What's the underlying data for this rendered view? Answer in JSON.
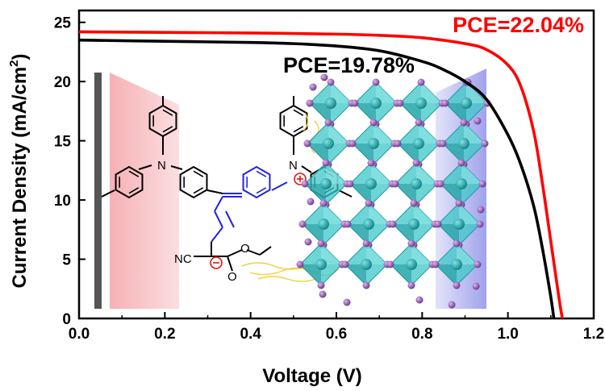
{
  "chart_data": {
    "type": "line",
    "xlabel": "Voltage (V)",
    "ylabel": "Current Density (mA/cm",
    "ylabel_superscript": "2",
    "ylabel_suffix": ")",
    "xlim": [
      0.0,
      1.2
    ],
    "ylim": [
      0,
      26
    ],
    "x_ticks": [
      "0.0",
      "0.2",
      "0.4",
      "0.6",
      "0.8",
      "1.0",
      "1.2"
    ],
    "y_ticks": [
      "0",
      "5",
      "10",
      "15",
      "20",
      "25"
    ],
    "grid": false,
    "series": [
      {
        "label": "PCE=22.04%",
        "color": "#ff0000",
        "x": [
          0.0,
          0.2,
          0.4,
          0.6,
          0.7,
          0.8,
          0.9,
          0.95,
          1.0,
          1.03,
          1.06,
          1.08,
          1.1,
          1.12,
          1.127
        ],
        "y": [
          24.2,
          24.15,
          24.1,
          24.0,
          23.9,
          23.7,
          23.2,
          22.7,
          21.4,
          19.6,
          15.8,
          11.5,
          6.5,
          1.5,
          0
        ]
      },
      {
        "label": "PCE=19.78%",
        "color": "#000000",
        "x": [
          0.0,
          0.2,
          0.4,
          0.5,
          0.6,
          0.7,
          0.8,
          0.85,
          0.9,
          0.95,
          1.0,
          1.03,
          1.06,
          1.08,
          1.1,
          1.107
        ],
        "y": [
          23.5,
          23.4,
          23.3,
          23.2,
          23.0,
          22.6,
          21.7,
          21.0,
          20.0,
          18.5,
          15.5,
          13.0,
          9.5,
          6.0,
          1.8,
          0
        ]
      }
    ]
  },
  "molecule_labels": {
    "nitrogen_left": "N",
    "nitrogen_right": "N",
    "nitrile": "NC",
    "ester_o1": "O",
    "ester_o2": "O"
  },
  "colors": {
    "left_panel": "#f4a3a8",
    "right_panel": "#8f92e8",
    "conjugated_bonds": "#2222dd",
    "octahedra": "#2fc2c2",
    "atoms": "#8a4fa8"
  }
}
